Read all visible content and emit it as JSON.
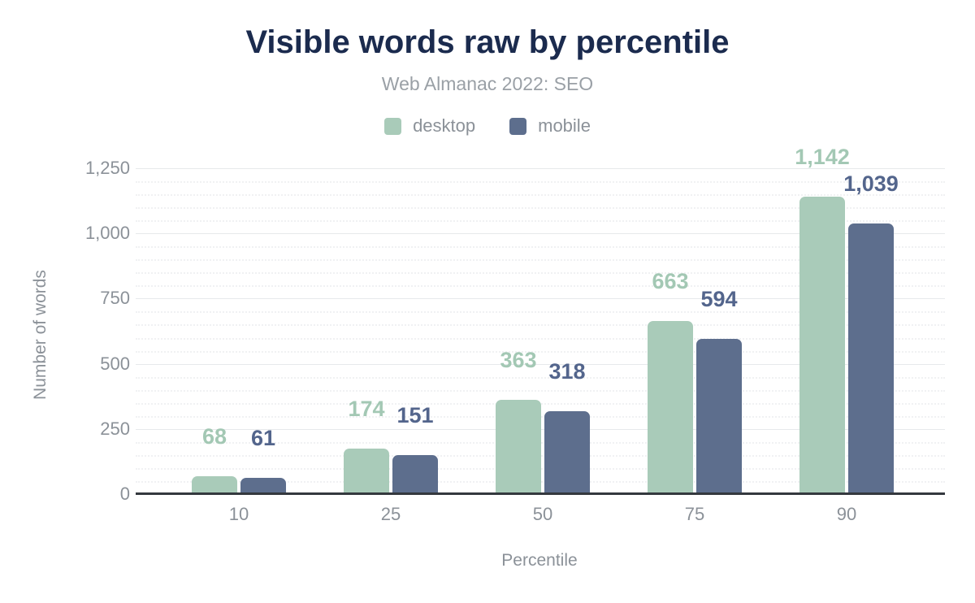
{
  "title": "Visible words raw by percentile",
  "subtitle": "Web Almanac 2022: SEO",
  "legend": {
    "items": [
      {
        "label": "desktop",
        "color": "#a9cbb9"
      },
      {
        "label": "mobile",
        "color": "#5d6e8d"
      }
    ]
  },
  "chart_data": {
    "type": "bar",
    "title": "Visible words raw by percentile",
    "subtitle": "Web Almanac 2022: SEO",
    "categories": [
      "10",
      "25",
      "50",
      "75",
      "90"
    ],
    "series": [
      {
        "name": "desktop",
        "color": "#a9cbb9",
        "label_color": "#a3c8b4",
        "values": [
          68,
          174,
          363,
          663,
          1142
        ],
        "value_labels": [
          "68",
          "174",
          "363",
          "663",
          "1,142"
        ]
      },
      {
        "name": "mobile",
        "color": "#5d6e8d",
        "label_color": "#53658c",
        "values": [
          61,
          151,
          318,
          594,
          1039
        ],
        "value_labels": [
          "61",
          "151",
          "318",
          "594",
          "1,039"
        ]
      }
    ],
    "xlabel": "Percentile",
    "ylabel": "Number of words",
    "ylim": [
      0,
      1250
    ],
    "yticks": [
      0,
      250,
      500,
      750,
      1000,
      1250
    ],
    "ytick_labels": [
      "0",
      "250",
      "500",
      "750",
      "1,000",
      "1,250"
    ],
    "y_minor_step": 50,
    "grid": "major-solid-minor-dotted",
    "legend_position": "top"
  }
}
